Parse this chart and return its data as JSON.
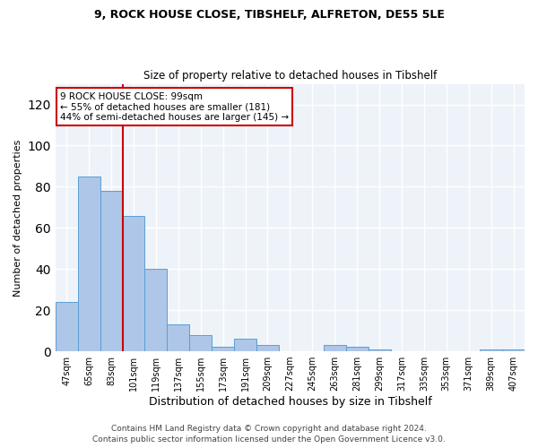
{
  "title1": "9, ROCK HOUSE CLOSE, TIBSHELF, ALFRETON, DE55 5LE",
  "title2": "Size of property relative to detached houses in Tibshelf",
  "xlabel": "Distribution of detached houses by size in Tibshelf",
  "ylabel": "Number of detached properties",
  "categories": [
    "47sqm",
    "65sqm",
    "83sqm",
    "101sqm",
    "119sqm",
    "137sqm",
    "155sqm",
    "173sqm",
    "191sqm",
    "209sqm",
    "227sqm",
    "245sqm",
    "263sqm",
    "281sqm",
    "299sqm",
    "317sqm",
    "335sqm",
    "353sqm",
    "371sqm",
    "389sqm",
    "407sqm"
  ],
  "values": [
    24,
    85,
    78,
    66,
    40,
    13,
    8,
    2,
    6,
    3,
    0,
    0,
    3,
    2,
    1,
    0,
    0,
    0,
    0,
    1,
    1
  ],
  "bar_color": "#aec6e8",
  "bar_edge_color": "#5a9fd4",
  "ylim": [
    0,
    130
  ],
  "yticks": [
    0,
    20,
    40,
    60,
    80,
    100,
    120
  ],
  "property_size": 99,
  "property_bin_index": 3,
  "red_line_color": "#cc0000",
  "annotation_text": "9 ROCK HOUSE CLOSE: 99sqm\n← 55% of detached houses are smaller (181)\n44% of semi-detached houses are larger (145) →",
  "annotation_box_color": "#ffffff",
  "annotation_box_edge": "#cc0000",
  "footer1": "Contains HM Land Registry data © Crown copyright and database right 2024.",
  "footer2": "Contains public sector information licensed under the Open Government Licence v3.0.",
  "bg_color": "#eef3f9",
  "grid_color": "#ffffff",
  "title1_fontsize": 9,
  "title2_fontsize": 8.5,
  "ylabel_fontsize": 8,
  "xlabel_fontsize": 9,
  "tick_fontsize": 7,
  "footer_fontsize": 6.5
}
